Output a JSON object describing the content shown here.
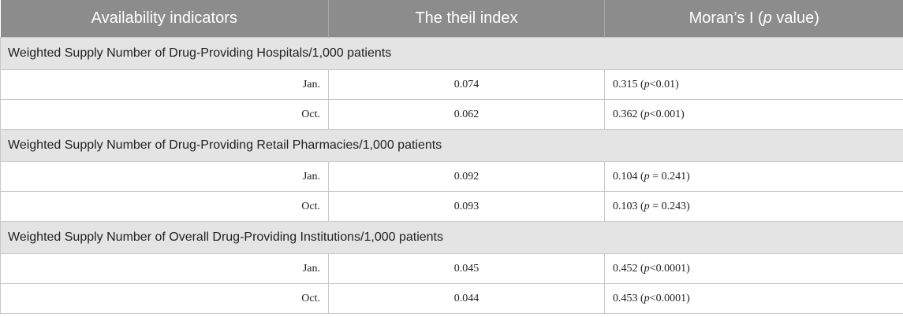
{
  "header": {
    "col1": "Availability indicators",
    "col2": "The theil index",
    "col3_prefix": "Moran’s I (",
    "col3_italic": "p",
    "col3_suffix": " value)"
  },
  "sections": [
    {
      "title": "Weighted Supply Number of Drug-Providing Hospitals/1,000 patients",
      "rows": [
        {
          "label": "Jan.",
          "theil": "0.074",
          "moran": "0.315",
          "p_rel": "<0.01"
        },
        {
          "label": "Oct.",
          "theil": "0.062",
          "moran": "0.362",
          "p_rel": "<0.001"
        }
      ]
    },
    {
      "title": "Weighted Supply Number of Drug-Providing Retail Pharmacies/1,000 patients",
      "rows": [
        {
          "label": "Jan.",
          "theil": "0.092",
          "moran": "0.104",
          "p_rel": " = 0.241"
        },
        {
          "label": "Oct.",
          "theil": "0.093",
          "moran": "0.103",
          "p_rel": " = 0.243"
        }
      ]
    },
    {
      "title": "Weighted Supply Number of Overall Drug-Providing Institutions/1,000 patients",
      "rows": [
        {
          "label": "Jan.",
          "theil": "0.045",
          "moran": "0.452",
          "p_rel": "<0.0001"
        },
        {
          "label": "Oct.",
          "theil": "0.044",
          "moran": "0.453",
          "p_rel": "<0.0001"
        }
      ]
    }
  ]
}
